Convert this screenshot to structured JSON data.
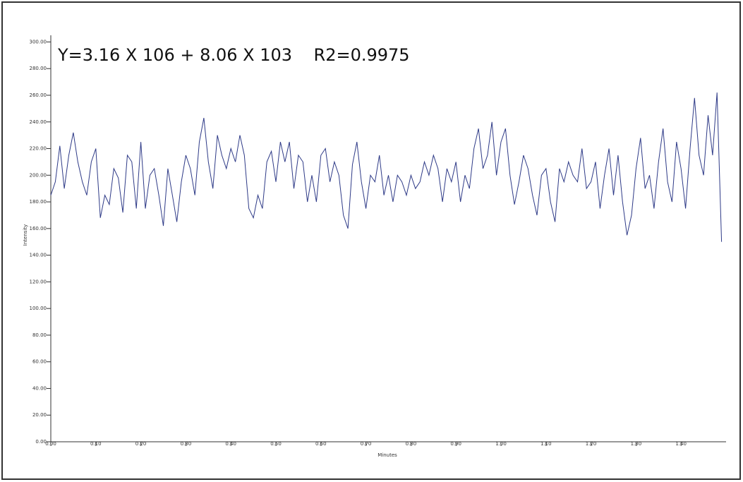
{
  "chart_data": {
    "type": "line",
    "annotation": "Y=3.16 X 106 + 8.06 X 103    R2=0.9975",
    "x_label": "Minutes",
    "y_label": "Intensity",
    "color": "#2e3a87",
    "x": [
      0.0,
      0.01,
      0.02,
      0.03,
      0.04,
      0.05,
      0.06,
      0.07,
      0.08,
      0.09,
      0.1,
      0.11,
      0.12,
      0.13,
      0.14,
      0.15,
      0.16,
      0.17,
      0.18,
      0.19,
      0.2,
      0.21,
      0.22,
      0.23,
      0.24,
      0.25,
      0.26,
      0.27,
      0.28,
      0.29,
      0.3,
      0.31,
      0.32,
      0.33,
      0.34,
      0.35,
      0.36,
      0.37,
      0.38,
      0.39,
      0.4,
      0.41,
      0.42,
      0.43,
      0.44,
      0.45,
      0.46,
      0.47,
      0.48,
      0.49,
      0.5,
      0.51,
      0.52,
      0.53,
      0.54,
      0.55,
      0.56,
      0.57,
      0.58,
      0.59,
      0.6,
      0.61,
      0.62,
      0.63,
      0.64,
      0.65,
      0.66,
      0.67,
      0.68,
      0.69,
      0.7,
      0.71,
      0.72,
      0.73,
      0.74,
      0.75,
      0.76,
      0.77,
      0.78,
      0.79,
      0.8,
      0.81,
      0.82,
      0.83,
      0.84,
      0.85,
      0.86,
      0.87,
      0.88,
      0.89,
      0.9,
      0.91,
      0.92,
      0.93,
      0.94,
      0.95,
      0.96,
      0.97,
      0.98,
      0.99,
      1.0,
      1.01,
      1.02,
      1.03,
      1.04,
      1.05,
      1.06,
      1.07,
      1.08,
      1.09,
      1.1,
      1.11,
      1.12,
      1.13,
      1.14,
      1.15,
      1.16,
      1.17,
      1.18,
      1.19,
      1.2,
      1.21,
      1.22,
      1.23,
      1.24,
      1.25,
      1.26,
      1.27,
      1.28,
      1.29,
      1.3,
      1.31,
      1.32,
      1.33,
      1.34,
      1.35,
      1.36,
      1.37,
      1.38,
      1.39,
      1.4,
      1.41,
      1.42,
      1.43,
      1.44,
      1.45,
      1.46,
      1.47,
      1.48,
      1.49
    ],
    "values": [
      185,
      195,
      222,
      190,
      215,
      232,
      210,
      195,
      185,
      210,
      220,
      168,
      185,
      178,
      205,
      198,
      172,
      215,
      210,
      175,
      225,
      175,
      200,
      205,
      185,
      162,
      205,
      185,
      165,
      195,
      215,
      205,
      185,
      225,
      243,
      210,
      190,
      230,
      215,
      205,
      220,
      210,
      230,
      215,
      175,
      168,
      185,
      175,
      210,
      218,
      195,
      225,
      210,
      225,
      190,
      215,
      210,
      180,
      200,
      180,
      215,
      220,
      195,
      210,
      200,
      170,
      160,
      208,
      225,
      195,
      175,
      200,
      195,
      215,
      185,
      200,
      180,
      200,
      195,
      185,
      200,
      190,
      195,
      210,
      200,
      215,
      205,
      180,
      205,
      195,
      210,
      180,
      200,
      190,
      220,
      235,
      205,
      215,
      240,
      200,
      225,
      235,
      200,
      178,
      195,
      215,
      205,
      185,
      170,
      200,
      205,
      180,
      165,
      205,
      195,
      210,
      200,
      195,
      220,
      190,
      195,
      210,
      175,
      200,
      220,
      185,
      215,
      180,
      155,
      170,
      205,
      228,
      190,
      200,
      175,
      210,
      235,
      195,
      180,
      225,
      205,
      175,
      220,
      258,
      215,
      200,
      245,
      215,
      262,
      150
    ],
    "xlim": [
      0,
      1.5
    ],
    "ylim": [
      0,
      305
    ],
    "xticks": [
      {
        "value": 0,
        "label": "0.00"
      },
      {
        "value": 0.1,
        "label": "0.10"
      },
      {
        "value": 0.2,
        "label": "0.20"
      },
      {
        "value": 0.3,
        "label": "0.30"
      },
      {
        "value": 0.4,
        "label": "0.40"
      },
      {
        "value": 0.5,
        "label": "0.50"
      },
      {
        "value": 0.6,
        "label": "0.60"
      },
      {
        "value": 0.7,
        "label": "0.70"
      },
      {
        "value": 0.8,
        "label": "0.80"
      },
      {
        "value": 0.9,
        "label": "0.90"
      },
      {
        "value": 1.0,
        "label": "1.00"
      },
      {
        "value": 1.1,
        "label": "1.10"
      },
      {
        "value": 1.2,
        "label": "1.20"
      },
      {
        "value": 1.3,
        "label": "1.30"
      },
      {
        "value": 1.4,
        "label": "1.40"
      }
    ],
    "yticks": [
      {
        "value": 0,
        "label": "0.00"
      },
      {
        "value": 20,
        "label": "20.00"
      },
      {
        "value": 40,
        "label": "40.00"
      },
      {
        "value": 60,
        "label": "60.00"
      },
      {
        "value": 80,
        "label": "80.00"
      },
      {
        "value": 100,
        "label": "100.00"
      },
      {
        "value": 120,
        "label": "120.00"
      },
      {
        "value": 140,
        "label": "140.00"
      },
      {
        "value": 160,
        "label": "160.00"
      },
      {
        "value": 180,
        "label": "180.00"
      },
      {
        "value": 200,
        "label": "200.00"
      },
      {
        "value": 220,
        "label": "220.00"
      },
      {
        "value": 240,
        "label": "240.00"
      },
      {
        "value": 260,
        "label": "260.00"
      },
      {
        "value": 280,
        "label": "280.00"
      },
      {
        "value": 300,
        "label": "300.00"
      }
    ]
  }
}
